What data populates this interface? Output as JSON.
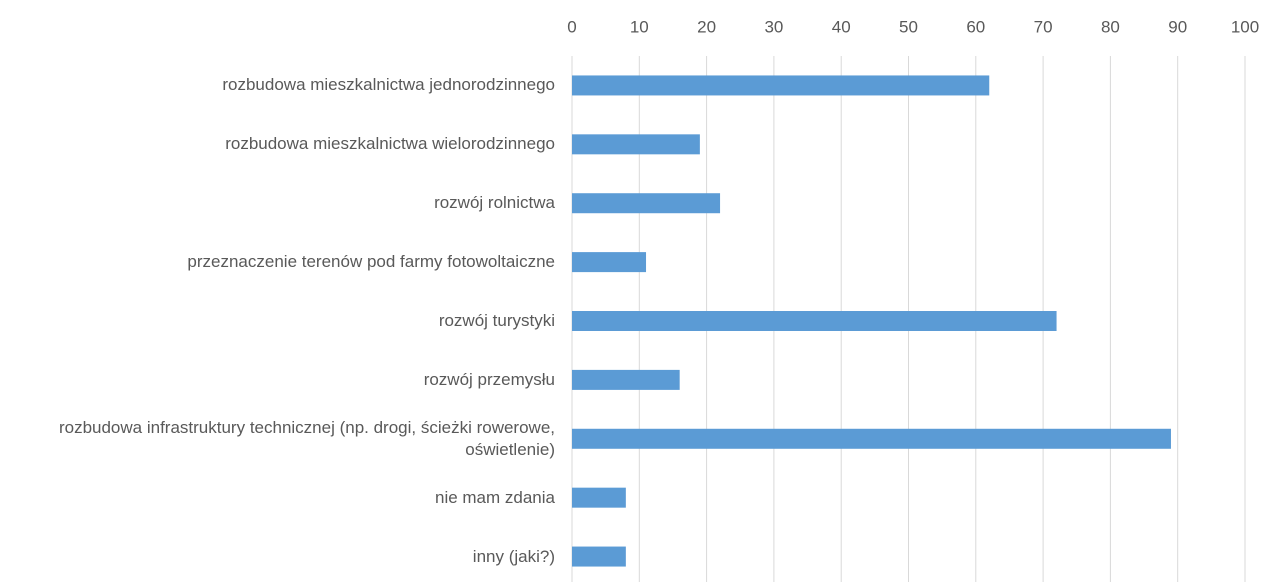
{
  "chart_data": {
    "type": "bar",
    "orientation": "horizontal",
    "categories": [
      "rozbudowa mieszkalnictwa jednorodzinnego",
      "rozbudowa mieszkalnictwa wielorodzinnego",
      "rozwój rolnictwa",
      "przeznaczenie terenów pod farmy fotowoltaiczne",
      "rozwój turystyki",
      "rozwój przemysłu",
      "rozbudowa infrastruktury technicznej (np. drogi, ścieżki rowerowe, oświetlenie)",
      "nie mam zdania",
      "inny (jaki?)"
    ],
    "values": [
      62,
      19,
      22,
      11,
      72,
      16,
      89,
      8,
      8
    ],
    "color": "#5b9bd5",
    "xlim": [
      0,
      100
    ],
    "xticks": [
      0,
      10,
      20,
      30,
      40,
      50,
      60,
      70,
      80,
      90,
      100
    ],
    "grid": true,
    "x_axis_position": "top"
  }
}
